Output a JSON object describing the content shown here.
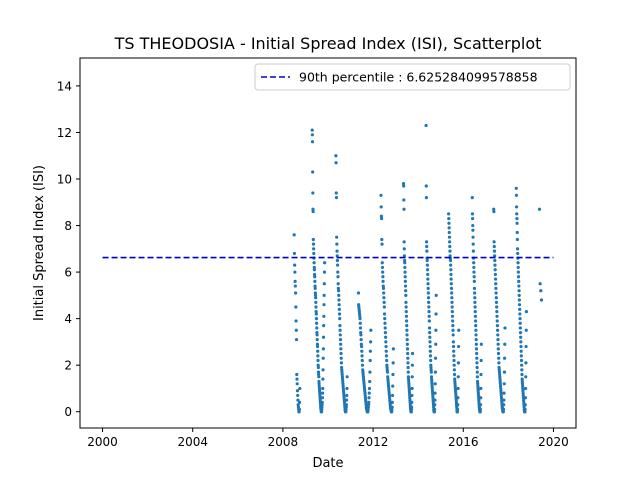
{
  "chart_data": {
    "type": "scatter",
    "title": "TS THEODOSIA - Initial Spread Index (ISI), Scatterplot",
    "xlabel": "Date",
    "ylabel": "Initial Spread Index (ISI)",
    "xlim": [
      1999.0,
      2021.0
    ],
    "ylim": [
      -0.7,
      15.2
    ],
    "xticks": [
      2000,
      2004,
      2008,
      2012,
      2016,
      2020
    ],
    "xtick_labels": [
      "2000",
      "2004",
      "2008",
      "2012",
      "2016",
      "2020"
    ],
    "yticks": [
      0,
      2,
      4,
      6,
      8,
      10,
      12,
      14
    ],
    "ytick_labels": [
      "0",
      "2",
      "4",
      "6",
      "8",
      "10",
      "12",
      "14"
    ],
    "grid": false,
    "legend_position": "top-right",
    "reference_line": {
      "label": "90th percentile : 6.625284099578858",
      "value": 6.625284099578858,
      "x_range": [
        2000.0,
        2020.0
      ],
      "color": "#0000cd",
      "style": "dashed"
    },
    "point_color": "#1f77b4",
    "seasons": [
      {
        "year": 2008,
        "x_start": 2008.5,
        "x_end": 2008.75,
        "values": [
          7.6,
          6.8,
          6.3,
          6.0,
          5.6,
          5.4,
          5.1,
          4.5,
          3.9,
          3.5,
          3.1,
          1.6,
          1.4,
          1.2,
          0.9,
          0.7,
          0.5,
          0.3,
          0.2,
          0.1,
          0.0,
          0.0,
          0.1,
          0.4,
          1.0
        ]
      },
      {
        "year": 2009,
        "x_start": 2009.3,
        "x_end": 2009.85,
        "values": [
          12.1,
          11.9,
          11.6,
          10.3,
          9.4,
          8.7,
          8.6,
          7.4,
          7.2,
          7.0,
          6.8,
          6.6,
          6.4,
          6.2,
          6.1,
          5.9,
          5.8,
          5.6,
          5.4,
          5.3,
          5.1,
          5.0,
          4.9,
          4.7,
          4.5,
          4.3,
          4.2,
          4.0,
          3.8,
          3.6,
          3.4,
          3.3,
          3.1,
          2.9,
          2.8,
          2.6,
          2.4,
          2.2,
          2.0,
          1.9,
          1.7,
          1.6,
          1.5,
          1.3,
          1.2,
          1.1,
          1.0,
          0.9,
          0.8,
          0.7,
          0.6,
          0.5,
          0.4,
          0.3,
          0.2,
          0.15,
          0.1,
          0.05,
          0.0,
          0.0,
          0.0,
          0.1,
          0.2,
          0.3,
          0.4,
          0.6,
          0.8,
          1.0,
          1.4,
          1.8,
          2.3,
          2.7,
          3.2,
          3.7,
          4.1,
          4.6,
          5.0,
          5.5,
          6.0,
          6.4
        ]
      },
      {
        "year": 2010,
        "x_start": 2010.35,
        "x_end": 2010.85,
        "values": [
          11.0,
          10.7,
          9.4,
          9.2,
          7.5,
          7.2,
          6.9,
          6.7,
          6.5,
          6.3,
          6.0,
          5.8,
          5.5,
          5.3,
          5.2,
          5.0,
          4.8,
          4.6,
          4.4,
          4.2,
          4.0,
          3.7,
          3.5,
          3.3,
          3.1,
          2.9,
          2.7,
          2.5,
          2.3,
          2.1,
          1.9,
          1.8,
          1.7,
          1.6,
          1.5,
          1.4,
          1.3,
          1.2,
          1.1,
          1.0,
          0.9,
          0.8,
          0.7,
          0.6,
          0.5,
          0.4,
          0.3,
          0.2,
          0.1,
          0.05,
          0.0,
          0.0,
          0.0,
          0.1,
          0.2,
          0.3,
          0.5,
          0.7,
          1.0,
          1.5
        ]
      },
      {
        "year": 2011,
        "x_start": 2011.35,
        "x_end": 2011.9,
        "values": [
          5.1,
          4.6,
          4.5,
          4.4,
          4.3,
          4.2,
          4.1,
          4.0,
          3.8,
          3.6,
          3.4,
          3.3,
          3.1,
          2.9,
          2.8,
          2.6,
          2.4,
          2.2,
          2.0,
          1.8,
          1.7,
          1.6,
          1.5,
          1.4,
          1.3,
          1.2,
          1.1,
          1.0,
          0.9,
          0.8,
          0.7,
          0.6,
          0.5,
          0.4,
          0.3,
          0.2,
          0.15,
          0.1,
          0.05,
          0.0,
          0.0,
          0.0,
          0.0,
          0.1,
          0.2,
          0.3,
          0.4,
          0.6,
          0.8,
          1.0,
          1.3,
          1.7,
          2.2,
          2.6,
          3.0,
          3.5
        ]
      },
      {
        "year": 2012,
        "x_start": 2012.35,
        "x_end": 2012.9,
        "values": [
          9.3,
          8.8,
          8.4,
          8.3,
          7.4,
          7.2,
          6.4,
          6.2,
          6.0,
          5.8,
          5.6,
          5.4,
          5.3,
          5.1,
          4.9,
          4.7,
          4.5,
          4.2,
          4.0,
          3.8,
          3.6,
          3.4,
          3.2,
          3.0,
          2.8,
          2.6,
          2.4,
          2.2,
          2.0,
          1.9,
          1.8,
          1.7,
          1.5,
          1.4,
          1.3,
          1.2,
          1.1,
          1.0,
          0.9,
          0.8,
          0.7,
          0.6,
          0.5,
          0.4,
          0.3,
          0.2,
          0.15,
          0.1,
          0.05,
          0.0,
          0.0,
          0.0,
          0.1,
          0.2,
          0.4,
          0.7,
          1.1,
          1.6,
          2.1,
          2.7
        ]
      },
      {
        "year": 2013,
        "x_start": 2013.35,
        "x_end": 2013.75,
        "values": [
          9.8,
          9.7,
          9.1,
          8.7,
          7.3,
          7.0,
          6.7,
          6.5,
          6.4,
          6.2,
          6.0,
          5.8,
          5.6,
          5.4,
          5.2,
          5.0,
          4.7,
          4.5,
          4.3,
          4.1,
          3.9,
          3.7,
          3.5,
          3.3,
          3.1,
          2.9,
          2.7,
          2.5,
          2.3,
          2.1,
          1.9,
          1.7,
          1.5,
          1.4,
          1.3,
          1.2,
          1.1,
          1.0,
          0.9,
          0.8,
          0.7,
          0.6,
          0.5,
          0.4,
          0.3,
          0.2,
          0.15,
          0.1,
          0.05,
          0.0,
          0.0,
          0.0,
          0.1,
          0.2,
          0.4,
          0.7,
          1.0,
          1.5,
          2.0,
          2.5
        ]
      },
      {
        "year": 2014,
        "x_start": 2014.35,
        "x_end": 2014.8,
        "values": [
          12.3,
          9.7,
          9.2,
          7.3,
          7.1,
          6.9,
          6.6,
          6.5,
          6.3,
          6.1,
          5.9,
          5.7,
          5.5,
          5.3,
          5.1,
          4.9,
          4.7,
          4.5,
          4.3,
          4.1,
          3.9,
          3.6,
          3.4,
          3.2,
          3.0,
          2.8,
          2.6,
          2.4,
          2.2,
          2.0,
          1.9,
          1.8,
          1.7,
          1.5,
          1.4,
          1.3,
          1.2,
          1.1,
          1.0,
          0.9,
          0.8,
          0.7,
          0.6,
          0.5,
          0.4,
          0.3,
          0.2,
          0.1,
          0.05,
          0.0,
          0.0,
          0.0,
          0.1,
          0.3,
          0.5,
          0.8,
          1.2,
          1.7,
          2.3,
          2.9,
          3.5,
          4.2,
          5.0
        ]
      },
      {
        "year": 2015,
        "x_start": 2015.35,
        "x_end": 2015.8,
        "values": [
          8.5,
          8.3,
          8.1,
          7.9,
          7.7,
          7.5,
          7.3,
          7.1,
          6.9,
          6.7,
          6.6,
          6.5,
          6.3,
          6.1,
          5.9,
          5.7,
          5.5,
          5.3,
          5.1,
          4.9,
          4.7,
          4.5,
          4.3,
          4.1,
          3.9,
          3.7,
          3.5,
          3.3,
          3.0,
          2.8,
          2.6,
          2.4,
          2.2,
          2.0,
          1.8,
          1.6,
          1.4,
          1.3,
          1.2,
          1.1,
          1.0,
          0.9,
          0.8,
          0.7,
          0.6,
          0.5,
          0.4,
          0.3,
          0.2,
          0.1,
          0.0,
          0.0,
          0.0,
          0.1,
          0.3,
          0.6,
          1.0,
          1.5,
          2.1,
          2.8,
          3.5
        ]
      },
      {
        "year": 2016,
        "x_start": 2016.4,
        "x_end": 2016.8,
        "values": [
          9.2,
          8.5,
          8.3,
          8.0,
          7.8,
          7.5,
          7.2,
          6.9,
          6.6,
          6.4,
          6.2,
          6.0,
          5.8,
          5.6,
          5.3,
          5.1,
          4.9,
          4.7,
          4.5,
          4.3,
          4.1,
          3.9,
          3.7,
          3.5,
          3.3,
          3.1,
          2.9,
          2.7,
          2.5,
          2.3,
          2.1,
          1.9,
          1.7,
          1.5,
          1.3,
          1.2,
          1.1,
          1.0,
          0.9,
          0.8,
          0.7,
          0.6,
          0.5,
          0.4,
          0.3,
          0.2,
          0.15,
          0.1,
          0.05,
          0.0,
          0.0,
          0.0,
          0.1,
          0.3,
          0.6,
          1.0,
          1.6,
          2.2,
          2.9
        ]
      },
      {
        "year": 2017,
        "x_start": 2017.35,
        "x_end": 2017.85,
        "values": [
          8.7,
          8.6,
          7.3,
          7.1,
          6.9,
          6.7,
          6.5,
          6.3,
          6.1,
          5.9,
          5.7,
          5.5,
          5.3,
          5.1,
          4.9,
          4.7,
          4.5,
          4.3,
          4.1,
          3.9,
          3.7,
          3.5,
          3.3,
          3.1,
          2.9,
          2.7,
          2.5,
          2.3,
          2.1,
          1.9,
          1.8,
          1.7,
          1.6,
          1.5,
          1.4,
          1.3,
          1.2,
          1.1,
          1.0,
          0.9,
          0.8,
          0.7,
          0.6,
          0.5,
          0.4,
          0.3,
          0.2,
          0.15,
          0.1,
          0.05,
          0.0,
          0.0,
          0.0,
          0.1,
          0.3,
          0.5,
          0.8,
          1.2,
          1.7,
          2.3,
          2.9,
          3.6
        ]
      },
      {
        "year": 2018,
        "x_start": 2018.35,
        "x_end": 2018.8,
        "values": [
          9.6,
          9.3,
          8.8,
          8.5,
          8.3,
          8.1,
          7.7,
          7.4,
          7.0,
          6.8,
          6.6,
          6.4,
          6.2,
          6.0,
          5.8,
          5.6,
          5.4,
          5.2,
          5.0,
          4.8,
          4.6,
          4.4,
          4.2,
          4.0,
          3.8,
          3.6,
          3.4,
          3.2,
          3.0,
          2.8,
          2.6,
          2.4,
          2.2,
          2.0,
          1.8,
          1.6,
          1.4,
          1.3,
          1.2,
          1.1,
          1.0,
          0.9,
          0.8,
          0.7,
          0.6,
          0.5,
          0.4,
          0.3,
          0.2,
          0.1,
          0.05,
          0.0,
          0.0,
          0.0,
          0.1,
          0.3,
          0.6,
          1.0,
          1.5,
          2.1,
          2.8,
          3.5,
          4.3
        ]
      },
      {
        "year": 2019,
        "x_start": 2019.38,
        "x_end": 2019.47,
        "values": [
          8.7,
          5.5,
          5.2,
          4.8
        ]
      }
    ]
  }
}
